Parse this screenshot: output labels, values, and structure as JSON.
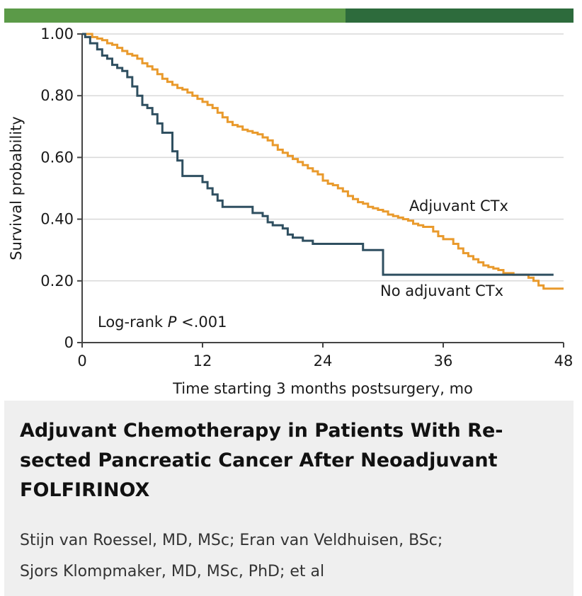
{
  "colors": {
    "top_bar_light": "#5b9a48",
    "top_bar_dark": "#2d6b3c",
    "adjuvant_line": "#e99a2c",
    "no_adjuvant_line": "#2f4f60",
    "grid": "#d9d9d9"
  },
  "chart_data": {
    "type": "line",
    "step": true,
    "xlabel": "Time starting 3 months postsurgery, mo",
    "ylabel": "Survival probability",
    "xlim": [
      0,
      48
    ],
    "ylim": [
      0,
      1.0
    ],
    "x_ticks": [
      0,
      12,
      24,
      36,
      48
    ],
    "x_tick_labels": [
      "0",
      "12",
      "24",
      "36",
      "48"
    ],
    "y_ticks": [
      0,
      0.2,
      0.4,
      0.6,
      0.8,
      1.0
    ],
    "y_tick_labels": [
      "0",
      "0.20",
      "0.40",
      "0.60",
      "0.80",
      "1.00"
    ],
    "grid": true,
    "annotation": {
      "prefix": "Log-rank ",
      "italic": "P",
      "suffix": " <.001"
    },
    "series": [
      {
        "name": "Adjuvant CTx",
        "color": "#e99a2c",
        "x": [
          0,
          0.5,
          1,
          1.5,
          2,
          2.5,
          3,
          3.5,
          4,
          4.5,
          5,
          5.5,
          6,
          6.5,
          7,
          7.5,
          8,
          8.5,
          9,
          9.5,
          10,
          10.5,
          11,
          11.5,
          12,
          12.5,
          13,
          13.5,
          14,
          14.5,
          15,
          15.5,
          16,
          16.5,
          17,
          17.5,
          18,
          18.5,
          19,
          19.5,
          20,
          20.5,
          21,
          21.5,
          22,
          22.5,
          23,
          23.5,
          24,
          24.5,
          25,
          25.5,
          26,
          26.5,
          27,
          27.5,
          28,
          28.5,
          29,
          29.5,
          30,
          30.5,
          31,
          31.5,
          32,
          32.5,
          33,
          33.5,
          34,
          35,
          35.5,
          36,
          37,
          37.5,
          38,
          38.5,
          39,
          39.5,
          40,
          40.5,
          41,
          41.5,
          42,
          43,
          44,
          44.5,
          45,
          45.5,
          46,
          48
        ],
        "y": [
          1.0,
          1.0,
          0.99,
          0.985,
          0.98,
          0.97,
          0.965,
          0.955,
          0.945,
          0.935,
          0.93,
          0.92,
          0.905,
          0.895,
          0.885,
          0.87,
          0.855,
          0.845,
          0.835,
          0.825,
          0.82,
          0.81,
          0.8,
          0.79,
          0.78,
          0.77,
          0.76,
          0.745,
          0.73,
          0.715,
          0.705,
          0.7,
          0.69,
          0.685,
          0.68,
          0.675,
          0.665,
          0.655,
          0.64,
          0.625,
          0.615,
          0.605,
          0.595,
          0.585,
          0.575,
          0.565,
          0.555,
          0.545,
          0.525,
          0.515,
          0.51,
          0.5,
          0.49,
          0.475,
          0.465,
          0.455,
          0.45,
          0.44,
          0.435,
          0.43,
          0.425,
          0.415,
          0.41,
          0.405,
          0.4,
          0.395,
          0.385,
          0.38,
          0.375,
          0.36,
          0.345,
          0.335,
          0.32,
          0.305,
          0.29,
          0.28,
          0.27,
          0.26,
          0.25,
          0.245,
          0.24,
          0.235,
          0.225,
          0.22,
          0.22,
          0.21,
          0.2,
          0.185,
          0.175,
          0.175
        ]
      },
      {
        "name": "No adjuvant CTx",
        "color": "#2f4f60",
        "x": [
          0,
          0.3,
          0.8,
          1.5,
          2,
          2.5,
          3,
          3.5,
          4,
          4.5,
          5,
          5.5,
          6,
          6.5,
          7,
          7.5,
          8,
          9,
          9.5,
          10,
          12,
          12.5,
          13,
          13.5,
          14,
          15,
          16,
          17,
          18,
          18.5,
          19,
          20,
          20.5,
          21,
          22,
          23,
          24,
          26,
          28,
          29,
          30,
          32,
          35,
          47
        ],
        "y": [
          1.0,
          0.99,
          0.97,
          0.95,
          0.93,
          0.92,
          0.9,
          0.89,
          0.88,
          0.86,
          0.83,
          0.8,
          0.77,
          0.76,
          0.74,
          0.71,
          0.68,
          0.62,
          0.59,
          0.54,
          0.52,
          0.5,
          0.48,
          0.46,
          0.44,
          0.44,
          0.44,
          0.42,
          0.41,
          0.39,
          0.38,
          0.37,
          0.35,
          0.34,
          0.33,
          0.32,
          0.32,
          0.32,
          0.3,
          0.3,
          0.22,
          0.22,
          0.22,
          0.22
        ]
      }
    ]
  },
  "caption": {
    "title": "Adjuvant Chemotherapy in Patients With Re-sected Pancreatic Cancer After Neoadjuvant FOLFIRINOX",
    "authors_line1": "Stijn van Roessel, MD, MSc; Eran van Veldhuisen, BSc;",
    "authors_line2": "Sjors Klompmaker, MD, MSc, PhD; et al"
  }
}
